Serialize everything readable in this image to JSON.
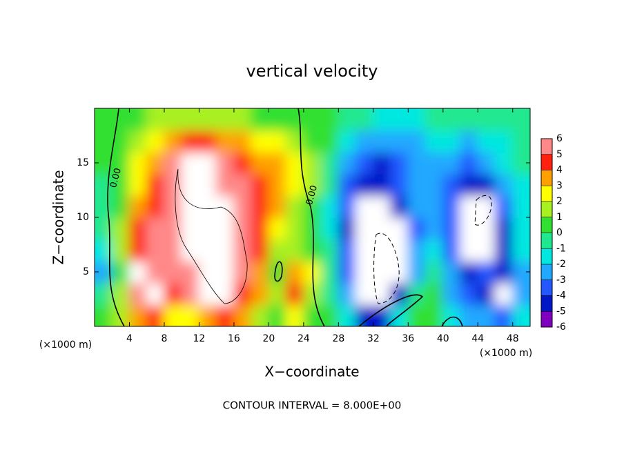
{
  "chart_data": {
    "type": "contour",
    "title": "vertical velocity",
    "x_label": "X−coordinate",
    "y_label": "Z−coordinate",
    "x_unit_labels": [
      "(×1000 m)",
      "(×1000 m)"
    ],
    "footer": "CONTOUR INTERVAL = 8.000E+00",
    "contour_labels": [
      "0.00",
      "0.00"
    ],
    "xlim": [
      0,
      50
    ],
    "ylim": [
      0,
      20
    ],
    "xticks": [
      4,
      8,
      12,
      16,
      20,
      24,
      28,
      32,
      36,
      40,
      44,
      48
    ],
    "yticks": [
      5,
      10,
      15
    ],
    "x": [
      1,
      3,
      5,
      7,
      9,
      11,
      13,
      15,
      17,
      19,
      21,
      23,
      25,
      27,
      29,
      31,
      33,
      35,
      37,
      39,
      41,
      43,
      45,
      47,
      49
    ],
    "y": [
      1,
      3,
      5,
      7,
      9,
      11,
      13,
      15,
      17,
      19
    ],
    "z": [
      [
        0,
        1,
        3,
        4,
        2,
        2,
        3,
        4,
        3,
        1,
        0.5,
        2,
        0.5,
        0,
        -2,
        -5,
        -5,
        -2,
        0,
        0.5,
        -2,
        -3,
        -3,
        -4,
        -2
      ],
      [
        -1,
        1,
        5,
        8,
        4,
        5,
        8,
        8,
        4,
        3,
        1,
        4.5,
        1,
        -1,
        -3,
        -8,
        -8,
        -5,
        -1,
        0,
        -3,
        -4,
        -5,
        -8,
        -3
      ],
      [
        -2.5,
        0.5,
        8,
        5,
        5,
        6,
        8,
        8,
        5,
        3,
        0,
        3,
        2,
        -1,
        -4,
        -8,
        -8,
        -8,
        -3,
        -1,
        -3,
        -5,
        -4,
        -5,
        -3
      ],
      [
        -2,
        1,
        4,
        5,
        6,
        8,
        8,
        8,
        5,
        4,
        1.5,
        1,
        0.5,
        -1,
        -4,
        -8,
        -8,
        -8,
        -3,
        -2,
        -4,
        -8,
        -8,
        -5,
        -2
      ],
      [
        -1,
        1,
        4,
        5,
        5,
        8,
        8,
        8,
        6,
        4,
        2,
        1,
        0.5,
        -2,
        -5,
        -8,
        -8,
        -8,
        -4,
        -3,
        -4,
        -8,
        -8,
        -5,
        -2
      ],
      [
        -1,
        0.5,
        3,
        4,
        5,
        8,
        8,
        8,
        5,
        4,
        3,
        1.5,
        0.5,
        -1.5,
        -4,
        -8,
        -8,
        -5,
        -3,
        -3,
        -4,
        -8,
        -8,
        -4,
        -2
      ],
      [
        -0.5,
        0.5,
        2,
        4,
        5,
        8,
        8,
        6,
        5,
        4,
        3,
        2,
        1,
        -1,
        -4,
        -5,
        -5,
        -4,
        -3,
        -3,
        -4,
        -5,
        -5,
        -3,
        -1.5
      ],
      [
        0,
        0.5,
        2,
        3,
        5,
        8,
        8,
        5,
        4,
        3,
        3,
        2,
        1,
        -0.5,
        -3,
        -4,
        -4.5,
        -4,
        -3,
        -2.5,
        -3,
        -3.5,
        -3,
        -2,
        -1
      ],
      [
        0,
        0,
        1,
        2,
        3,
        4,
        4,
        3,
        3,
        2,
        2,
        1,
        0.5,
        0,
        -1.5,
        -2.5,
        -3,
        -3,
        -2.5,
        -2,
        -2,
        -2.5,
        -2,
        -1.5,
        -1
      ],
      [
        0,
        0,
        0.5,
        1,
        1,
        1,
        1,
        1,
        1,
        0.5,
        0.5,
        0,
        0,
        0,
        -0.5,
        -1,
        -1.5,
        -1.5,
        -1.5,
        -1,
        -1,
        -1,
        -1,
        -1,
        -1
      ]
    ],
    "colorbar_ticks": [
      6,
      5,
      4,
      3,
      2,
      1,
      0,
      -1,
      -2,
      -3,
      -4,
      -5,
      -6
    ],
    "colorbar_colors": [
      "#8000c0",
      "#0018c8",
      "#2458ff",
      "#20a8ff",
      "#00e8e0",
      "#20e890",
      "#30e030",
      "#a8f020",
      "#ffff00",
      "#ffa000",
      "#ff2010",
      "#ff8888"
    ],
    "out_of_range_color": "#ffffff"
  }
}
